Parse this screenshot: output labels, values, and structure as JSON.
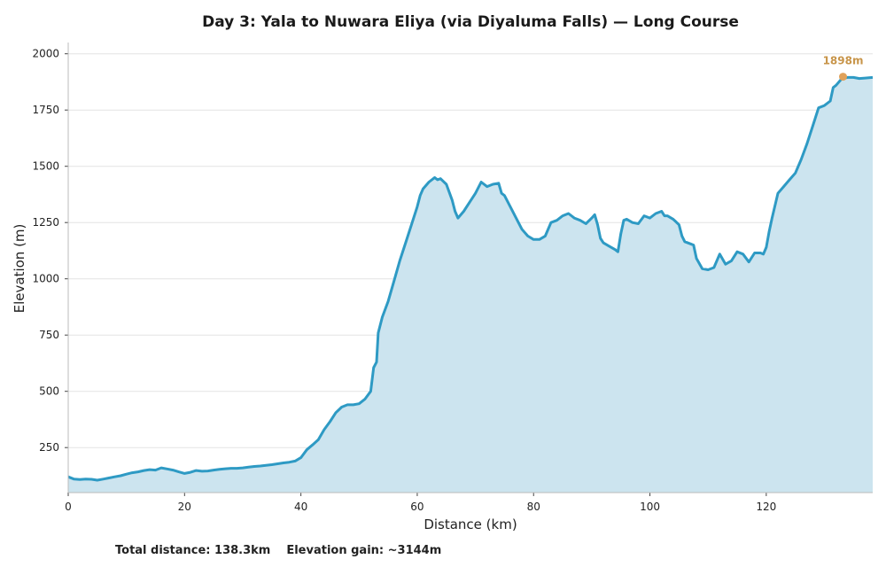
{
  "chart_data": {
    "type": "area",
    "title": "Day 3: Yala to Nuwara Eliya (via Diyaluma Falls) — Long Course",
    "xlabel": "Distance (km)",
    "ylabel": "Elevation (m)",
    "xlim": [
      0,
      138.3
    ],
    "ylim": [
      50,
      2050
    ],
    "x_ticks": [
      "0",
      "20",
      "40",
      "60",
      "80",
      "100",
      "120"
    ],
    "y_ticks": [
      "250",
      "500",
      "750",
      "1000",
      "1250",
      "1500",
      "1750",
      "2000"
    ],
    "grid": "horizontal",
    "colors": {
      "line": "#2e9ac4",
      "fill": "#cce4ef",
      "marker": "#e0a15a",
      "annotation": "#c8954a"
    },
    "series": [
      {
        "points": [
          [
            0,
            120
          ],
          [
            1,
            110
          ],
          [
            2,
            108
          ],
          [
            3,
            110
          ],
          [
            4,
            109
          ],
          [
            5,
            105
          ],
          [
            6,
            110
          ],
          [
            7,
            115
          ],
          [
            8,
            120
          ],
          [
            9,
            125
          ],
          [
            10,
            132
          ],
          [
            11,
            138
          ],
          [
            12,
            142
          ],
          [
            13,
            148
          ],
          [
            14,
            152
          ],
          [
            15,
            150
          ],
          [
            16,
            160
          ],
          [
            17,
            155
          ],
          [
            18,
            150
          ],
          [
            19,
            142
          ],
          [
            20,
            135
          ],
          [
            21,
            140
          ],
          [
            22,
            148
          ],
          [
            23,
            145
          ],
          [
            24,
            146
          ],
          [
            25,
            150
          ],
          [
            26,
            153
          ],
          [
            27,
            156
          ],
          [
            28,
            158
          ],
          [
            29,
            158
          ],
          [
            30,
            160
          ],
          [
            31,
            163
          ],
          [
            32,
            166
          ],
          [
            33,
            168
          ],
          [
            34,
            171
          ],
          [
            35,
            174
          ],
          [
            36,
            178
          ],
          [
            37,
            182
          ],
          [
            38,
            185
          ],
          [
            39,
            190
          ],
          [
            40,
            205
          ],
          [
            41,
            240
          ],
          [
            42,
            262
          ],
          [
            43,
            285
          ],
          [
            44,
            330
          ],
          [
            45,
            365
          ],
          [
            46,
            405
          ],
          [
            47,
            430
          ],
          [
            48,
            440
          ],
          [
            49,
            440
          ],
          [
            50,
            445
          ],
          [
            51,
            465
          ],
          [
            52,
            500
          ],
          [
            52.5,
            605
          ],
          [
            53,
            630
          ],
          [
            53.3,
            760
          ],
          [
            54,
            830
          ],
          [
            55,
            900
          ],
          [
            56,
            990
          ],
          [
            57,
            1080
          ],
          [
            58,
            1160
          ],
          [
            59,
            1240
          ],
          [
            60,
            1320
          ],
          [
            60.5,
            1370
          ],
          [
            61,
            1400
          ],
          [
            62,
            1430
          ],
          [
            63,
            1450
          ],
          [
            63.5,
            1440
          ],
          [
            64,
            1445
          ],
          [
            65,
            1420
          ],
          [
            66,
            1350
          ],
          [
            66.5,
            1300
          ],
          [
            67,
            1270
          ],
          [
            68,
            1300
          ],
          [
            69,
            1340
          ],
          [
            70,
            1380
          ],
          [
            71,
            1430
          ],
          [
            72,
            1410
          ],
          [
            73,
            1420
          ],
          [
            74,
            1425
          ],
          [
            74.5,
            1380
          ],
          [
            75,
            1370
          ],
          [
            76,
            1320
          ],
          [
            77,
            1270
          ],
          [
            78,
            1220
          ],
          [
            79,
            1190
          ],
          [
            80,
            1175
          ],
          [
            81,
            1175
          ],
          [
            82,
            1190
          ],
          [
            83,
            1250
          ],
          [
            84,
            1260
          ],
          [
            85,
            1280
          ],
          [
            86,
            1290
          ],
          [
            87,
            1270
          ],
          [
            88,
            1260
          ],
          [
            89,
            1245
          ],
          [
            90,
            1270
          ],
          [
            90.5,
            1285
          ],
          [
            91,
            1240
          ],
          [
            91.5,
            1180
          ],
          [
            92,
            1160
          ],
          [
            93,
            1145
          ],
          [
            94,
            1130
          ],
          [
            94.5,
            1120
          ],
          [
            95,
            1200
          ],
          [
            95.5,
            1260
          ],
          [
            96,
            1265
          ],
          [
            97,
            1250
          ],
          [
            98,
            1245
          ],
          [
            99,
            1280
          ],
          [
            100,
            1270
          ],
          [
            101,
            1290
          ],
          [
            102,
            1300
          ],
          [
            102.5,
            1280
          ],
          [
            103,
            1280
          ],
          [
            104,
            1265
          ],
          [
            105,
            1240
          ],
          [
            105.5,
            1190
          ],
          [
            106,
            1165
          ],
          [
            107,
            1155
          ],
          [
            107.5,
            1150
          ],
          [
            108,
            1090
          ],
          [
            109,
            1045
          ],
          [
            110,
            1040
          ],
          [
            111,
            1050
          ],
          [
            112,
            1110
          ],
          [
            113,
            1065
          ],
          [
            114,
            1080
          ],
          [
            115,
            1120
          ],
          [
            116,
            1110
          ],
          [
            117,
            1075
          ],
          [
            118,
            1115
          ],
          [
            119,
            1115
          ],
          [
            119.5,
            1110
          ],
          [
            120,
            1140
          ],
          [
            120.5,
            1210
          ],
          [
            121,
            1270
          ],
          [
            122,
            1380
          ],
          [
            123,
            1410
          ],
          [
            124,
            1440
          ],
          [
            125,
            1470
          ],
          [
            126,
            1530
          ],
          [
            127,
            1600
          ],
          [
            128,
            1680
          ],
          [
            129,
            1760
          ],
          [
            130,
            1770
          ],
          [
            131,
            1790
          ],
          [
            131.5,
            1850
          ],
          [
            132,
            1860
          ],
          [
            133,
            1890
          ],
          [
            134,
            1895
          ],
          [
            135,
            1895
          ],
          [
            136,
            1890
          ],
          [
            137,
            1892
          ],
          [
            138.3,
            1895
          ]
        ]
      }
    ],
    "annotation": {
      "x": 133.2,
      "y": 1898,
      "label": "1898m"
    }
  },
  "footer": {
    "distance": "Total distance: 138.3km",
    "gain": "Elevation gain: ~3144m"
  }
}
